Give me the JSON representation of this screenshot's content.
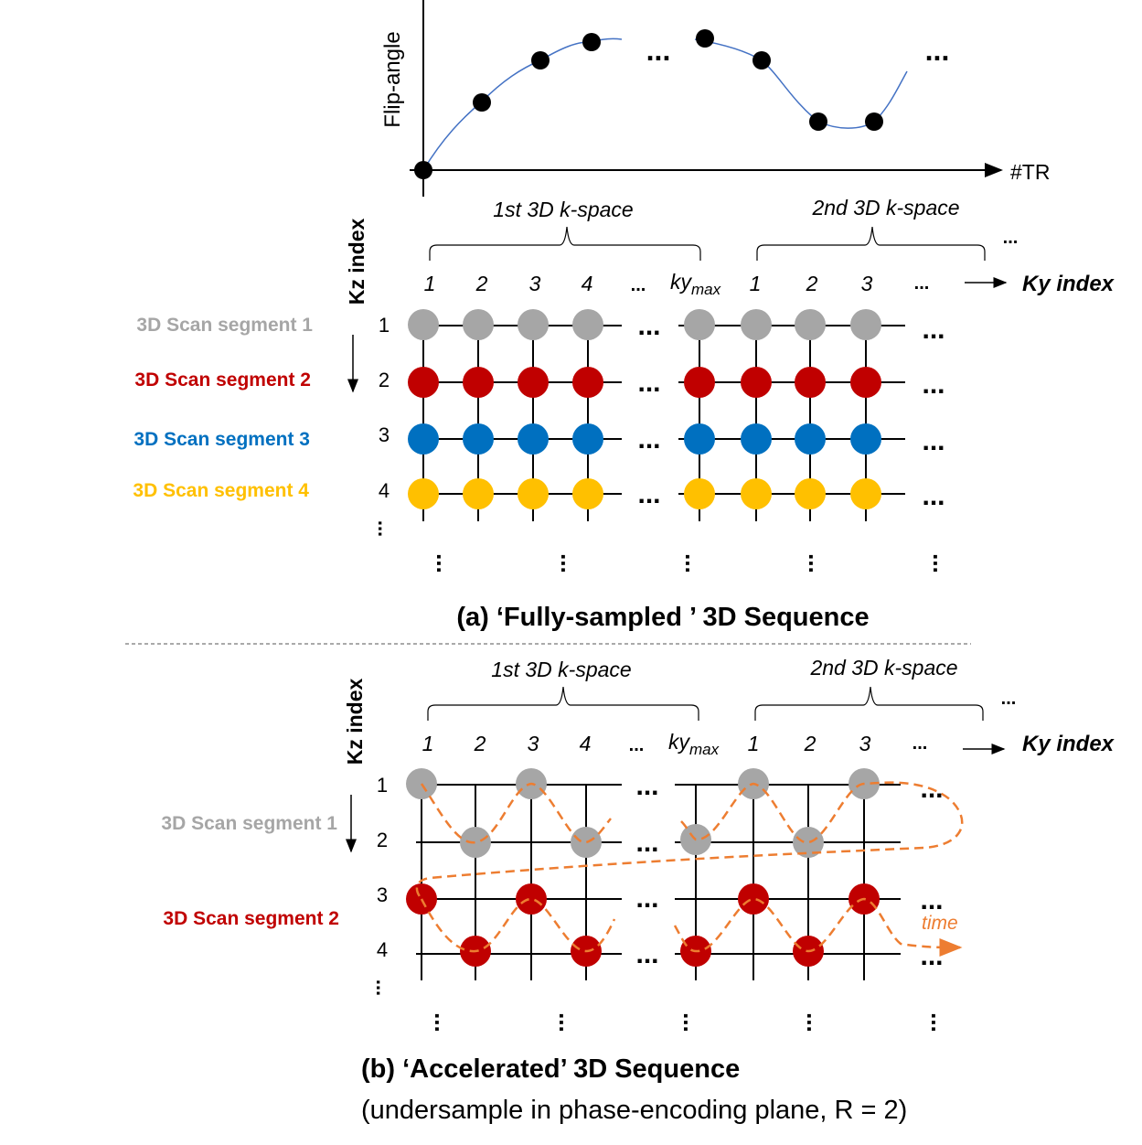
{
  "colors": {
    "gray": "#A6A6A6",
    "red": "#C00000",
    "blue": "#0070C0",
    "yellow": "#FFC000",
    "curve": "#4472C4",
    "path": "#ED7D31",
    "ink": "#000000"
  },
  "flip_angle_chart": {
    "ylabel": "Flip-angle",
    "xlabel": "#TR",
    "ellipsis": "..."
  },
  "common": {
    "kspace1": "1st 3D k-space",
    "kspace2": "2nd 3D k-space",
    "ky_index": "Ky index",
    "kz_index": "Kz index",
    "ky_cols_first": [
      "1",
      "2",
      "3",
      "4"
    ],
    "ky_ellipsis": "...",
    "kymax_base": "ky",
    "kymax_sub": "max",
    "ky_cols_second": [
      "1",
      "2",
      "3"
    ],
    "kz_rows": [
      "1",
      "2",
      "3",
      "4"
    ],
    "ellipsis": "..."
  },
  "panel_a": {
    "segments": [
      "3D Scan segment 1",
      "3D Scan segment 2",
      "3D Scan segment 3",
      "3D Scan segment 4"
    ],
    "caption": "(a) ‘Fully-sampled ’ 3D Sequence"
  },
  "panel_b": {
    "segments": [
      "3D Scan segment 1",
      "3D Scan segment 2"
    ],
    "time_label": "time",
    "caption": "(b) ‘Accelerated’ 3D Sequence",
    "subcaption": "(undersample in phase-encoding plane, R = 2)"
  }
}
